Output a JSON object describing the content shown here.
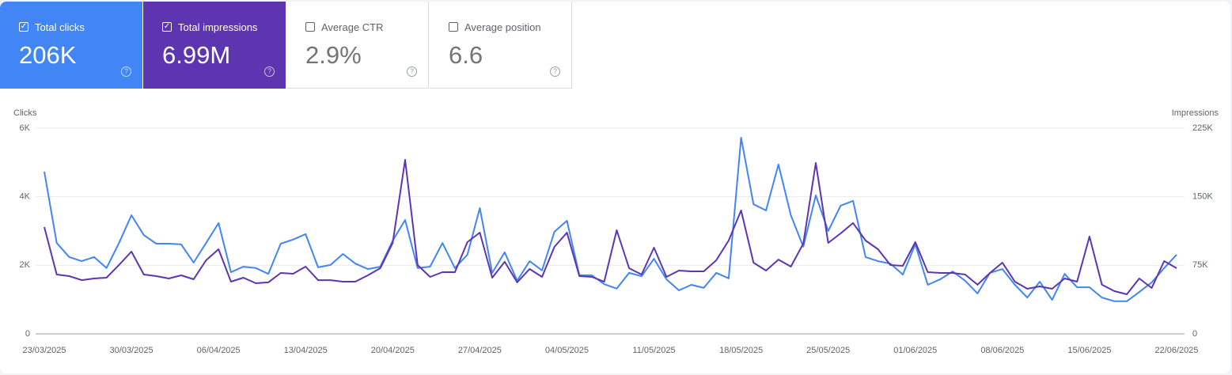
{
  "metrics": [
    {
      "label": "Total clicks",
      "value": "206K",
      "checked": true,
      "color": "#4285f4"
    },
    {
      "label": "Total impressions",
      "value": "6.99M",
      "checked": true,
      "color": "#5e35b1"
    },
    {
      "label": "Average CTR",
      "value": "2.9%",
      "checked": false,
      "color": "#ffffff"
    },
    {
      "label": "Average position",
      "value": "6.6",
      "checked": false,
      "color": "#ffffff"
    }
  ],
  "chart_data": {
    "type": "line",
    "y_label": "Clicks",
    "y2_label": "Impressions",
    "categories": [
      "23/03/2025",
      null,
      null,
      null,
      null,
      null,
      null,
      "30/03/2025",
      null,
      null,
      null,
      null,
      null,
      null,
      "06/04/2025",
      null,
      null,
      null,
      null,
      null,
      null,
      "13/04/2025",
      null,
      null,
      null,
      null,
      null,
      null,
      "20/04/2025",
      null,
      null,
      null,
      null,
      null,
      null,
      "27/04/2025",
      null,
      null,
      null,
      null,
      null,
      null,
      "04/05/2025",
      null,
      null,
      null,
      null,
      null,
      null,
      "11/05/2025",
      null,
      null,
      null,
      null,
      null,
      null,
      "18/05/2025",
      null,
      null,
      null,
      null,
      null,
      null,
      "25/05/2025",
      null,
      null,
      null,
      null,
      null,
      null,
      "01/06/2025",
      null,
      null,
      null,
      null,
      null,
      null,
      "08/06/2025",
      null,
      null,
      null,
      null,
      null,
      null,
      "15/06/2025",
      null,
      null,
      null,
      null,
      null,
      null,
      "22/06/2025"
    ],
    "ylim": [
      0,
      6000
    ],
    "yticks": [
      0,
      {
        "value": 2000,
        "label": "2K"
      },
      {
        "value": 4000,
        "label": "4K"
      },
      {
        "value": 6000,
        "label": "6K"
      }
    ],
    "y2lim": [
      0,
      225000
    ],
    "y2ticks": [
      0,
      {
        "value": 75000,
        "label": "75K"
      },
      {
        "value": 150000,
        "label": "150K"
      },
      {
        "value": 225000,
        "label": "225K"
      }
    ],
    "grid": true,
    "series": [
      {
        "name": "Clicks",
        "color": "#4285f4",
        "values": [
          4730,
          2650,
          2240,
          2120,
          2240,
          1920,
          2650,
          3460,
          2880,
          2630,
          2630,
          2610,
          2080,
          2650,
          3230,
          1800,
          1960,
          1920,
          1750,
          2630,
          2750,
          2910,
          1940,
          2010,
          2330,
          2050,
          1890,
          1960,
          2720,
          3320,
          1920,
          1960,
          2650,
          1920,
          2310,
          3670,
          1780,
          2380,
          1550,
          2120,
          1850,
          2980,
          3300,
          1710,
          1710,
          1450,
          1320,
          1780,
          1680,
          2190,
          1590,
          1270,
          1430,
          1340,
          1780,
          1620,
          5720,
          3780,
          3600,
          4940,
          3460,
          2540,
          4040,
          3000,
          3740,
          3880,
          2240,
          2120,
          2050,
          1730,
          2610,
          1430,
          1590,
          1820,
          1550,
          1180,
          1780,
          1890,
          1430,
          1060,
          1520,
          990,
          1750,
          1360,
          1360,
          1060,
          950,
          950,
          1220,
          1500,
          1920,
          2310
        ]
      },
      {
        "name": "Impressions",
        "color": "#5e35b1",
        "axis": "y2",
        "values": [
          116800,
          64900,
          63200,
          58800,
          60600,
          61400,
          75400,
          90000,
          64900,
          63200,
          60600,
          64000,
          59700,
          80500,
          92600,
          57100,
          61400,
          55400,
          56300,
          66600,
          65800,
          73600,
          58800,
          58800,
          57100,
          57100,
          64000,
          71800,
          99500,
          190400,
          75300,
          62300,
          67500,
          67500,
          100400,
          110800,
          61400,
          78800,
          56300,
          71000,
          62300,
          95200,
          110800,
          63200,
          62300,
          57100,
          113400,
          71800,
          64900,
          94300,
          62300,
          69200,
          68400,
          68400,
          80500,
          102100,
          135000,
          77900,
          69200,
          81300,
          73600,
          98700,
          186900,
          99500,
          109900,
          121200,
          102100,
          92600,
          75300,
          74400,
          100400,
          67500,
          66600,
          66600,
          64900,
          53700,
          66600,
          77900,
          57100,
          49300,
          51900,
          49300,
          60600,
          57100,
          106400,
          53700,
          46700,
          43300,
          60600,
          50200,
          79600,
          71800
        ]
      }
    ]
  }
}
